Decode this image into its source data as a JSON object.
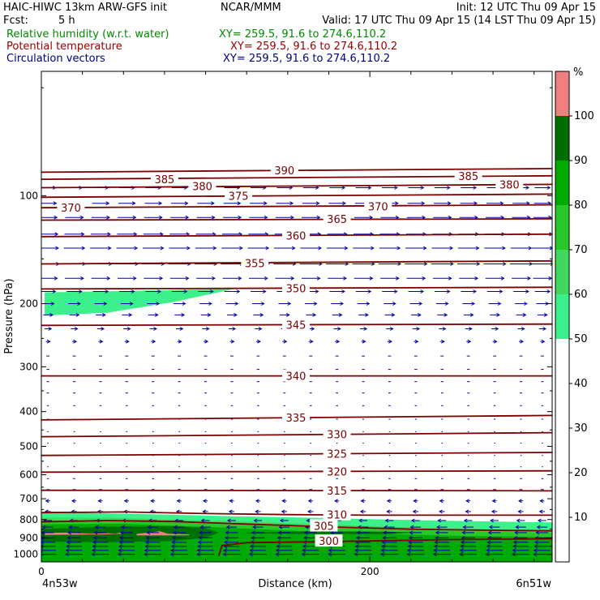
{
  "header": {
    "line1_left": "HAIC-HIWC 13km ARW-GFS init",
    "line1_center": "NCAR/MMM",
    "line1_right": "Init: 12 UTC Thu 09 Apr 15",
    "fcst_label": "Fcst:",
    "fcst_value": "5 h",
    "valid": "Valid: 17 UTC Thu 09 Apr 15 (14 LST Thu 09 Apr 15)",
    "fields": [
      {
        "name": "Relative humidity (w.r.t. water)",
        "xy": "XY= 259.5, 91.6 to 274.6,110.2",
        "color": "#008a00"
      },
      {
        "name": "Potential temperature",
        "xy": "XY= 259.5, 91.6 to 274.6,110.2",
        "color": "#a00000"
      },
      {
        "name": "Circulation vectors",
        "xy": "XY= 259.5, 91.6 to 274.6,110.2",
        "color": "#000080"
      }
    ]
  },
  "chart_data": {
    "type": "heatmap",
    "xlabel": "Distance (km)",
    "ylabel": "Pressure (hPa)",
    "xlim": [
      0,
      311
    ],
    "ylim": [
      1050,
      45
    ],
    "y_scale": "log",
    "x_ticks": [
      0,
      200
    ],
    "y_ticks": [
      100,
      200,
      300,
      400,
      500,
      600,
      700,
      800,
      900,
      1000
    ],
    "x_endpoint_labels": [
      "4n53w",
      "6n51w"
    ],
    "colorbar": {
      "unit": "%",
      "levels": [
        10,
        20,
        30,
        40,
        50,
        60,
        70,
        80,
        90,
        100
      ],
      "colors": [
        "#ffffff",
        "#ffffff",
        "#ffffff",
        "#ffffff",
        "#ffffff",
        "#3cf08c",
        "#41d85f",
        "#28c828",
        "#00aa00",
        "#006e00",
        "#f08080"
      ]
    },
    "rh_regions": [
      {
        "level": 50,
        "points": [
          [
            0,
            768
          ],
          [
            20,
            765
          ],
          [
            60,
            772
          ],
          [
            110,
            782
          ],
          [
            160,
            790
          ],
          [
            210,
            800
          ],
          [
            260,
            808
          ],
          [
            311,
            815
          ],
          [
            311,
            1050
          ],
          [
            0,
            1050
          ]
        ]
      },
      {
        "level": 60,
        "points": [
          [
            0,
            790
          ],
          [
            40,
            790
          ],
          [
            80,
            800
          ],
          [
            130,
            812
          ],
          [
            180,
            828
          ],
          [
            230,
            842
          ],
          [
            280,
            852
          ],
          [
            311,
            856
          ],
          [
            311,
            1050
          ],
          [
            0,
            1050
          ]
        ]
      },
      {
        "level": 70,
        "points": [
          [
            0,
            805
          ],
          [
            40,
            805
          ],
          [
            80,
            815
          ],
          [
            130,
            830
          ],
          [
            180,
            845
          ],
          [
            230,
            858
          ],
          [
            280,
            866
          ],
          [
            311,
            870
          ],
          [
            311,
            1050
          ],
          [
            0,
            1050
          ]
        ]
      },
      {
        "level": 80,
        "points": [
          [
            0,
            825
          ],
          [
            50,
            822
          ],
          [
            100,
            838
          ],
          [
            150,
            858
          ],
          [
            200,
            875
          ],
          [
            250,
            888
          ],
          [
            311,
            895
          ],
          [
            311,
            1050
          ],
          [
            0,
            1050
          ]
        ]
      },
      {
        "level": 90,
        "points": [
          [
            0,
            850
          ],
          [
            40,
            838
          ],
          [
            80,
            835
          ],
          [
            100,
            845
          ],
          [
            108,
            870
          ],
          [
            100,
            900
          ],
          [
            80,
            918
          ],
          [
            40,
            925
          ],
          [
            0,
            922
          ]
        ]
      },
      {
        "level": 90,
        "points": [
          [
            125,
            870
          ],
          [
            165,
            863
          ],
          [
            210,
            865
          ],
          [
            230,
            870
          ],
          [
            210,
            878
          ],
          [
            165,
            878
          ],
          [
            125,
            875
          ]
        ]
      },
      {
        "level": 100,
        "points": [
          [
            2,
            872
          ],
          [
            15,
            870
          ],
          [
            30,
            876
          ],
          [
            40,
            874
          ],
          [
            45,
            876
          ],
          [
            48,
            870
          ],
          [
            50,
            876
          ],
          [
            38,
            880
          ],
          [
            15,
            882
          ],
          [
            2,
            883
          ]
        ]
      },
      {
        "level": 100,
        "points": [
          [
            58,
            877
          ],
          [
            68,
            868
          ],
          [
            72,
            862
          ],
          [
            77,
            876
          ],
          [
            90,
            880
          ],
          [
            90,
            885
          ],
          [
            58,
            886
          ]
        ]
      },
      {
        "level": 50,
        "points": [
          [
            2,
            186
          ],
          [
            60,
            184
          ],
          [
            110,
            182
          ],
          [
            120,
            181
          ],
          [
            80,
            198
          ],
          [
            40,
            212
          ],
          [
            2,
            216
          ]
        ]
      }
    ],
    "isentropes": [
      {
        "label": 300,
        "points": [
          [
            108,
            1010
          ],
          [
            110,
            945
          ],
          [
            125,
            928
          ],
          [
            200,
            918
          ],
          [
            250,
            910
          ],
          [
            311,
            905
          ]
        ],
        "label_at": [
          175,
          918
        ]
      },
      {
        "label": 305,
        "points": [
          [
            0,
            812
          ],
          [
            40,
            805
          ],
          [
            80,
            810
          ],
          [
            130,
            825
          ],
          [
            180,
            840
          ],
          [
            230,
            852
          ],
          [
            280,
            858
          ],
          [
            311,
            860
          ]
        ],
        "label_at": [
          172,
          833
        ]
      },
      {
        "label": 310,
        "points": [
          [
            0,
            765
          ],
          [
            50,
            762
          ],
          [
            100,
            770
          ],
          [
            150,
            775
          ],
          [
            200,
            778
          ],
          [
            250,
            778
          ],
          [
            311,
            778
          ]
        ],
        "label_at": [
          180,
          775
        ]
      },
      {
        "label": 315,
        "points": [
          [
            0,
            663
          ],
          [
            311,
            665
          ]
        ],
        "label_at": [
          180,
          664
        ]
      },
      {
        "label": 320,
        "points": [
          [
            0,
            590
          ],
          [
            311,
            585
          ]
        ],
        "label_at": [
          180,
          587
        ]
      },
      {
        "label": 325,
        "points": [
          [
            0,
            530
          ],
          [
            311,
            520
          ]
        ],
        "label_at": [
          180,
          524
        ]
      },
      {
        "label": 330,
        "points": [
          [
            0,
            470
          ],
          [
            311,
            458
          ]
        ],
        "label_at": [
          180,
          463
        ]
      },
      {
        "label": 335,
        "points": [
          [
            0,
            422
          ],
          [
            311,
            410
          ]
        ],
        "label_at": [
          155,
          416
        ]
      },
      {
        "label": 340,
        "points": [
          [
            0,
            318
          ],
          [
            311,
            318
          ]
        ],
        "label_at": [
          155,
          318
        ]
      },
      {
        "label": 345,
        "points": [
          [
            0,
            230
          ],
          [
            311,
            228
          ]
        ],
        "label_at": [
          155,
          229
        ]
      },
      {
        "label": 350,
        "points": [
          [
            0,
            182
          ],
          [
            311,
            180
          ]
        ],
        "label_at": [
          155,
          181
        ]
      },
      {
        "label": 355,
        "points": [
          [
            0,
            155
          ],
          [
            311,
            152
          ]
        ],
        "label_at": [
          130,
          154
        ]
      },
      {
        "label": 360,
        "points": [
          [
            0,
            130
          ],
          [
            311,
            128
          ]
        ],
        "label_at": [
          155,
          129
        ]
      },
      {
        "label": 365,
        "points": [
          [
            0,
            117
          ],
          [
            311,
            116
          ]
        ],
        "label_at": [
          180,
          116
        ]
      },
      {
        "label": 370,
        "points": [
          [
            0,
            108
          ],
          [
            311,
            106
          ]
        ],
        "label_at": [
          18,
          108
        ]
      },
      {
        "label": 370,
        "points": [
          [
            0,
            108
          ],
          [
            311,
            106
          ]
        ],
        "label_at": [
          205,
          107
        ]
      },
      {
        "label": 375,
        "points": [
          [
            0,
            101
          ],
          [
            311,
            99
          ]
        ],
        "label_at": [
          120,
          100
        ]
      },
      {
        "label": 380,
        "points": [
          [
            0,
            95
          ],
          [
            311,
            93
          ]
        ],
        "label_at": [
          98,
          94
        ]
      },
      {
        "label": 380,
        "points": [
          [
            0,
            95
          ],
          [
            311,
            93
          ]
        ],
        "label_at": [
          285,
          93
        ]
      },
      {
        "label": 385,
        "points": [
          [
            0,
            90
          ],
          [
            311,
            88
          ]
        ],
        "label_at": [
          75,
          90
        ]
      },
      {
        "label": 385,
        "points": [
          [
            0,
            90
          ],
          [
            311,
            88
          ]
        ],
        "label_at": [
          260,
          88
        ]
      },
      {
        "label": 390,
        "points": [
          [
            0,
            86
          ],
          [
            311,
            84
          ]
        ],
        "label_at": [
          148,
          85
        ]
      }
    ],
    "circulation_vectors": {
      "rows_hPa": [
        95,
        105,
        115,
        128,
        140,
        155,
        170,
        185,
        200,
        215,
        235,
        255,
        280,
        305,
        330,
        355,
        385,
        420,
        455,
        490,
        530,
        570,
        615,
        660,
        710,
        760,
        805,
        840,
        870,
        900,
        925,
        950,
        975,
        1000
      ],
      "x_columns_km": [
        4,
        20,
        36,
        52,
        68,
        84,
        100,
        116,
        132,
        148,
        164,
        180,
        196,
        212,
        228,
        244,
        260,
        276,
        292,
        305
      ],
      "u_profile": [
        {
          "p": 95,
          "u": 9
        },
        {
          "p": 155,
          "u": 13
        },
        {
          "p": 200,
          "u": 7
        },
        {
          "p": 260,
          "u": 2
        },
        {
          "p": 330,
          "u": 1.5
        },
        {
          "p": 420,
          "u": 1
        },
        {
          "p": 600,
          "u": -1
        },
        {
          "p": 760,
          "u": -3
        },
        {
          "p": 870,
          "u": -7
        },
        {
          "p": 1000,
          "u": -10
        }
      ]
    }
  }
}
